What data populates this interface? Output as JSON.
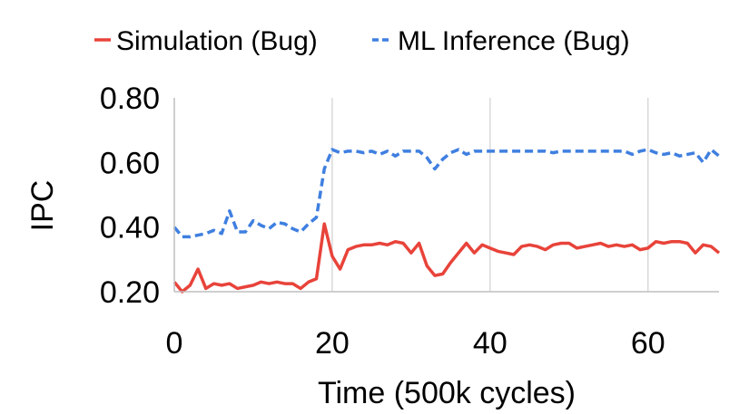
{
  "chart_data": {
    "type": "line",
    "xlabel": "Time (500k cycles)",
    "ylabel": "IPC",
    "xlim": [
      0,
      69
    ],
    "ylim": [
      0.2,
      0.8
    ],
    "x_ticks": [
      0,
      20,
      40,
      60
    ],
    "x_tick_labels": [
      "0",
      "20",
      "40",
      "60"
    ],
    "y_ticks": [
      0.2,
      0.4,
      0.6,
      0.8
    ],
    "y_tick_labels": [
      "0.20",
      "0.40",
      "0.60",
      "0.80"
    ],
    "grid": "vertical",
    "legend_position": "top",
    "x": [
      0,
      1,
      2,
      3,
      4,
      5,
      6,
      7,
      8,
      9,
      10,
      11,
      12,
      13,
      14,
      15,
      16,
      17,
      18,
      19,
      20,
      21,
      22,
      23,
      24,
      25,
      26,
      27,
      28,
      29,
      30,
      31,
      32,
      33,
      34,
      35,
      36,
      37,
      38,
      39,
      40,
      41,
      42,
      43,
      44,
      45,
      46,
      47,
      48,
      49,
      50,
      51,
      52,
      53,
      54,
      55,
      56,
      57,
      58,
      59,
      60,
      61,
      62,
      63,
      64,
      65,
      66,
      67,
      68,
      69
    ],
    "series": [
      {
        "name": "Simulation (Bug)",
        "color": "#e8433a",
        "dash": "solid",
        "values": [
          0.23,
          0.2,
          0.22,
          0.27,
          0.21,
          0.225,
          0.22,
          0.225,
          0.21,
          0.215,
          0.22,
          0.23,
          0.225,
          0.23,
          0.225,
          0.225,
          0.21,
          0.23,
          0.24,
          0.41,
          0.31,
          0.27,
          0.33,
          0.34,
          0.345,
          0.345,
          0.35,
          0.345,
          0.355,
          0.35,
          0.32,
          0.35,
          0.28,
          0.25,
          0.255,
          0.29,
          0.32,
          0.35,
          0.32,
          0.345,
          0.335,
          0.325,
          0.32,
          0.315,
          0.34,
          0.345,
          0.34,
          0.33,
          0.345,
          0.35,
          0.35,
          0.335,
          0.34,
          0.345,
          0.35,
          0.34,
          0.345,
          0.34,
          0.345,
          0.33,
          0.335,
          0.355,
          0.35,
          0.355,
          0.355,
          0.35,
          0.32,
          0.345,
          0.34,
          0.32
        ]
      },
      {
        "name": "ML Inference (Bug)",
        "color": "#3f7fe0",
        "dash": "dashed",
        "values": [
          0.4,
          0.37,
          0.37,
          0.375,
          0.38,
          0.39,
          0.38,
          0.45,
          0.385,
          0.385,
          0.42,
          0.405,
          0.395,
          0.415,
          0.41,
          0.395,
          0.385,
          0.41,
          0.43,
          0.58,
          0.64,
          0.63,
          0.635,
          0.635,
          0.63,
          0.635,
          0.625,
          0.635,
          0.62,
          0.635,
          0.635,
          0.635,
          0.615,
          0.58,
          0.61,
          0.63,
          0.64,
          0.625,
          0.635,
          0.635,
          0.635,
          0.635,
          0.635,
          0.635,
          0.635,
          0.635,
          0.635,
          0.635,
          0.63,
          0.635,
          0.635,
          0.635,
          0.635,
          0.635,
          0.635,
          0.635,
          0.635,
          0.635,
          0.625,
          0.635,
          0.64,
          0.63,
          0.625,
          0.63,
          0.62,
          0.625,
          0.63,
          0.6,
          0.64,
          0.62
        ]
      }
    ]
  }
}
